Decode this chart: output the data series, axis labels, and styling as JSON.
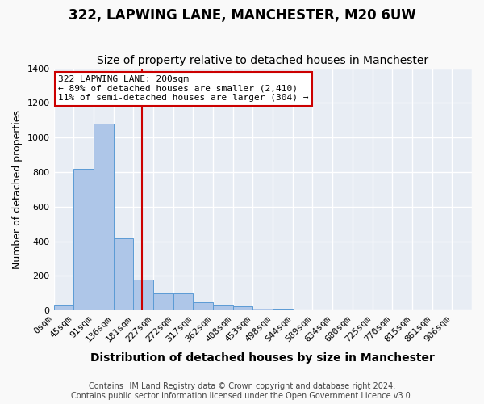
{
  "title": "322, LAPWING LANE, MANCHESTER, M20 6UW",
  "subtitle": "Size of property relative to detached houses in Manchester",
  "xlabel": "Distribution of detached houses by size in Manchester",
  "ylabel": "Number of detached properties",
  "footer_line1": "Contains HM Land Registry data © Crown copyright and database right 2024.",
  "footer_line2": "Contains public sector information licensed under the Open Government Licence v3.0.",
  "bins_step": 45,
  "num_bins": 21,
  "bin_labels": [
    "0sqm",
    "45sqm",
    "91sqm",
    "136sqm",
    "181sqm",
    "227sqm",
    "272sqm",
    "317sqm",
    "362sqm",
    "408sqm",
    "453sqm",
    "498sqm",
    "544sqm",
    "589sqm",
    "634sqm",
    "680sqm",
    "725sqm",
    "770sqm",
    "815sqm",
    "861sqm",
    "906sqm"
  ],
  "bar_heights": [
    30,
    820,
    1080,
    415,
    180,
    100,
    100,
    50,
    30,
    25,
    10,
    5,
    0,
    0,
    0,
    0,
    0,
    0,
    0,
    0,
    0
  ],
  "bar_color": "#aec6e8",
  "bar_edgecolor": "#5b9bd5",
  "background_color": "#e8edf4",
  "grid_color": "#ffffff",
  "vline_x": 200,
  "vline_color": "#cc0000",
  "annotation_text": "322 LAPWING LANE: 200sqm\n← 89% of detached houses are smaller (2,410)\n11% of semi-detached houses are larger (304) →",
  "annotation_box_edgecolor": "#cc0000",
  "ylim": [
    0,
    1400
  ],
  "yticks": [
    0,
    200,
    400,
    600,
    800,
    1000,
    1200,
    1400
  ],
  "title_fontsize": 12,
  "subtitle_fontsize": 10,
  "xlabel_fontsize": 10,
  "ylabel_fontsize": 9,
  "tick_fontsize": 8,
  "annotation_fontsize": 8,
  "footer_fontsize": 7
}
